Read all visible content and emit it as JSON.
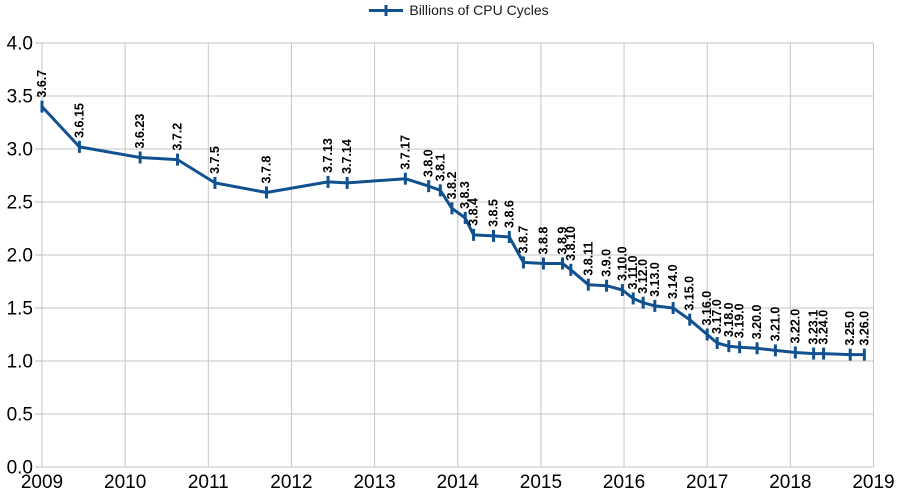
{
  "colors": {
    "series": "#11518f",
    "grid": "#c6c6c6",
    "axis": "#b9b9b9",
    "tick_label": "#000000",
    "data_label": "#000000",
    "legend_text": "#1a1a1a",
    "background": "#ffffff"
  },
  "chart_data": {
    "type": "line",
    "title": "",
    "legend": {
      "label": "Billions of CPU Cycles",
      "position": "top-center",
      "marker": "plus-on-line"
    },
    "grid": true,
    "x_axis": {
      "label": "",
      "min": 2009,
      "max": 2019,
      "tick_step": 1,
      "tick_labels": [
        "2009",
        "2010",
        "2011",
        "2012",
        "2013",
        "2014",
        "2015",
        "2016",
        "2017",
        "2018",
        "2019"
      ]
    },
    "y_axis": {
      "label": "",
      "min": 0.0,
      "max": 4.0,
      "tick_step": 0.5,
      "tick_labels": [
        "0.0",
        "0.5",
        "1.0",
        "1.5",
        "2.0",
        "2.5",
        "3.0",
        "3.5",
        "4.0"
      ]
    },
    "series": [
      {
        "name": "Billions of CPU Cycles",
        "color": "#11518f",
        "marker": "plus",
        "points": [
          {
            "label": "3.6.7",
            "x": 2009.0,
            "y": 3.4
          },
          {
            "label": "3.6.15",
            "x": 2009.45,
            "y": 3.02
          },
          {
            "label": "3.6.23",
            "x": 2010.18,
            "y": 2.92
          },
          {
            "label": "3.7.2",
            "x": 2010.63,
            "y": 2.9
          },
          {
            "label": "3.7.5",
            "x": 2011.08,
            "y": 2.68
          },
          {
            "label": "3.7.8",
            "x": 2011.7,
            "y": 2.59
          },
          {
            "label": "3.7.13",
            "x": 2012.44,
            "y": 2.69
          },
          {
            "label": "3.7.14",
            "x": 2012.67,
            "y": 2.68
          },
          {
            "label": "3.7.17",
            "x": 2013.37,
            "y": 2.72
          },
          {
            "label": "3.8.0",
            "x": 2013.65,
            "y": 2.65
          },
          {
            "label": "3.8.1",
            "x": 2013.79,
            "y": 2.61
          },
          {
            "label": "3.8.2",
            "x": 2013.93,
            "y": 2.44
          },
          {
            "label": "3.8.3",
            "x": 2014.09,
            "y": 2.35
          },
          {
            "label": "3.8.4",
            "x": 2014.19,
            "y": 2.19
          },
          {
            "label": "3.8.5",
            "x": 2014.43,
            "y": 2.18
          },
          {
            "label": "3.8.6",
            "x": 2014.62,
            "y": 2.17
          },
          {
            "label": "3.8.7",
            "x": 2014.79,
            "y": 1.93
          },
          {
            "label": "3.8.8",
            "x": 2015.03,
            "y": 1.92
          },
          {
            "label": "3.8.9",
            "x": 2015.26,
            "y": 1.92
          },
          {
            "label": "3.8.10",
            "x": 2015.36,
            "y": 1.86
          },
          {
            "label": "3.8.11",
            "x": 2015.57,
            "y": 1.72
          },
          {
            "label": "3.9.0",
            "x": 2015.79,
            "y": 1.71
          },
          {
            "label": "3.10.0",
            "x": 2015.98,
            "y": 1.67
          },
          {
            "label": "3.11.0",
            "x": 2016.11,
            "y": 1.59
          },
          {
            "label": "3.12.0",
            "x": 2016.23,
            "y": 1.55
          },
          {
            "label": "3.13.0",
            "x": 2016.37,
            "y": 1.52
          },
          {
            "label": "3.14.0",
            "x": 2016.59,
            "y": 1.5
          },
          {
            "label": "3.15.0",
            "x": 2016.79,
            "y": 1.39
          },
          {
            "label": "3.16.0",
            "x": 2017.0,
            "y": 1.25
          },
          {
            "label": "3.17.0",
            "x": 2017.12,
            "y": 1.17
          },
          {
            "label": "3.18.0",
            "x": 2017.26,
            "y": 1.14
          },
          {
            "label": "3.19.0",
            "x": 2017.39,
            "y": 1.13
          },
          {
            "label": "3.20.0",
            "x": 2017.6,
            "y": 1.12
          },
          {
            "label": "3.21.0",
            "x": 2017.82,
            "y": 1.1
          },
          {
            "label": "3.22.0",
            "x": 2018.06,
            "y": 1.08
          },
          {
            "label": "3.23.1",
            "x": 2018.28,
            "y": 1.07
          },
          {
            "label": "3.24.0",
            "x": 2018.4,
            "y": 1.07
          },
          {
            "label": "3.25.0",
            "x": 2018.72,
            "y": 1.06
          },
          {
            "label": "3.26.0",
            "x": 2018.89,
            "y": 1.06
          }
        ]
      }
    ]
  }
}
